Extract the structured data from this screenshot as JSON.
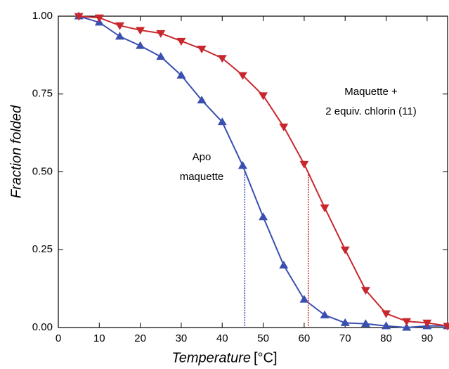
{
  "chart_data": {
    "type": "line",
    "xlabel": "Temperature",
    "xunit": "[°C]",
    "ylabel": "Fraction folded",
    "xlim": [
      0,
      95
    ],
    "ylim": [
      0,
      1
    ],
    "xticks": [
      0,
      10,
      20,
      30,
      40,
      50,
      60,
      70,
      80,
      90
    ],
    "yticks": [
      {
        "value": 0,
        "label": "0.00"
      },
      {
        "value": 0.25,
        "label": "0.25"
      },
      {
        "value": 0.5,
        "label": "0.50"
      },
      {
        "value": 0.75,
        "label": "0.75"
      },
      {
        "value": 1,
        "label": "1.00"
      }
    ],
    "x": [
      5,
      10,
      15,
      20,
      25,
      30,
      35,
      40,
      45,
      50,
      55,
      60,
      65,
      70,
      75,
      80,
      85,
      90,
      95
    ],
    "series": [
      {
        "name": [
          "Apo",
          "maquette"
        ],
        "color": "#3a4fb0",
        "marker": "triangle-up",
        "values": [
          1.0,
          0.98,
          0.935,
          0.905,
          0.87,
          0.81,
          0.73,
          0.66,
          0.52,
          0.355,
          0.2,
          0.09,
          0.04,
          0.015,
          0.012,
          0.005,
          0.0,
          0.005,
          0.005
        ],
        "midpoint": {
          "x": 45.5,
          "y": 0.5
        }
      },
      {
        "name": [
          "Maquette +",
          "2 equiv. chlorin (11)"
        ],
        "color": "#c8282d",
        "marker": "triangle-down",
        "values": [
          1.0,
          0.995,
          0.97,
          0.955,
          0.945,
          0.92,
          0.895,
          0.865,
          0.81,
          0.745,
          0.645,
          0.525,
          0.385,
          0.25,
          0.12,
          0.045,
          0.02,
          0.015,
          0.005
        ],
        "midpoint": {
          "x": 61,
          "y": 0.5
        }
      }
    ]
  }
}
